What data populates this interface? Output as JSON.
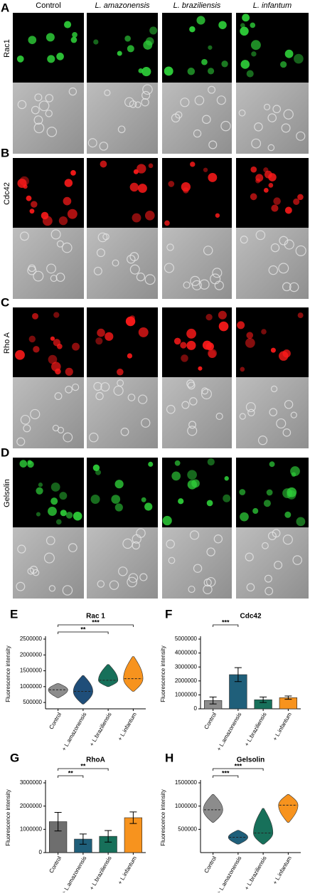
{
  "microscopy": {
    "columns": [
      "Control",
      "L. amazonensis",
      "L. braziliensis",
      "L. infantum"
    ],
    "rows": [
      {
        "panel": "A",
        "label": "Rac1",
        "color": "#2fd13a"
      },
      {
        "panel": "B",
        "label": "Cdc42",
        "color": "#ff1a1a"
      },
      {
        "panel": "C",
        "label": "Rho A",
        "color": "#ff1a1a"
      },
      {
        "panel": "D",
        "label": "Gelsolin",
        "color": "#2fd13a"
      }
    ]
  },
  "chart_data": [
    {
      "type": "violin",
      "panel": "E",
      "title": "Rac 1",
      "y_label": "Fluorescence intensity",
      "categories": [
        "Control",
        "+ L.amazonensis",
        "+ L.braziliensis",
        "+ L.infantum"
      ],
      "colors": [
        "#8c8c8c",
        "#1f4e79",
        "#17705a",
        "#f7931e"
      ],
      "medians": [
        900000,
        850000,
        1200000,
        1250000
      ],
      "mins": [
        650000,
        450000,
        1000000,
        850000
      ],
      "maxs": [
        1100000,
        1350000,
        1700000,
        1950000
      ],
      "ylim": [
        300000,
        2500000
      ],
      "yticks": [
        500000,
        1000000,
        1500000,
        2000000,
        2500000
      ],
      "annotations": [
        {
          "text": "***",
          "between": [
            "Control",
            "+ L.infantum"
          ]
        },
        {
          "text": "**",
          "between": [
            "Control",
            "+ L.braziliensis"
          ]
        }
      ]
    },
    {
      "type": "bar",
      "panel": "F",
      "title": "Cdc42",
      "y_label": "Fluorescence intensity",
      "categories": [
        "Control",
        "+ L.amazonensis",
        "+ L.braziliensis",
        "+ L.infantum"
      ],
      "colors": [
        "#8c8c8c",
        "#1f5f7a",
        "#17705a",
        "#f7931e"
      ],
      "values": [
        600000,
        2450000,
        650000,
        800000
      ],
      "errors": [
        250000,
        500000,
        200000,
        120000
      ],
      "ylim": [
        0,
        5000000
      ],
      "yticks": [
        0,
        1000000,
        2000000,
        3000000,
        4000000,
        5000000
      ],
      "annotations": [
        {
          "text": "***",
          "between": [
            "Control",
            "+ L.amazonensis"
          ]
        }
      ]
    },
    {
      "type": "bar",
      "panel": "G",
      "title": "RhoA",
      "y_label": "Fluorescence intensity",
      "categories": [
        "Control",
        "+ L.amazonensis",
        "+ L.braziliensis",
        "+ L.infantum"
      ],
      "colors": [
        "#6e6e6e",
        "#1f5f7a",
        "#17705a",
        "#f7931e"
      ],
      "values": [
        1330000,
        580000,
        700000,
        1500000
      ],
      "errors": [
        400000,
        220000,
        250000,
        250000
      ],
      "ylim": [
        0,
        3000000
      ],
      "yticks": [
        0,
        1000000,
        2000000,
        3000000
      ],
      "annotations": [
        {
          "text": "**",
          "between": [
            "Control",
            "+ L.braziliensis"
          ]
        },
        {
          "text": "**",
          "between": [
            "Control",
            "+ L.amazonensis"
          ]
        }
      ]
    },
    {
      "type": "violin",
      "panel": "H",
      "title": "Gelsolin",
      "y_label": "Fluorescence intensity",
      "categories": [
        "Control",
        "+ L.amazonensis",
        "+ L.braziliensis",
        "+ L.infantum"
      ],
      "colors": [
        "#8c8c8c",
        "#1f5f7a",
        "#17705a",
        "#f7931e"
      ],
      "medians": [
        920000,
        330000,
        420000,
        1020000
      ],
      "mins": [
        650000,
        180000,
        180000,
        650000
      ],
      "maxs": [
        1250000,
        480000,
        950000,
        1250000
      ],
      "ylim": [
        0,
        1500000
      ],
      "yticks": [
        500000,
        1000000,
        1500000
      ],
      "annotations": [
        {
          "text": "***",
          "between": [
            "Control",
            "+ L.braziliensis"
          ]
        },
        {
          "text": "***",
          "between": [
            "Control",
            "+ L.amazonensis"
          ]
        }
      ]
    }
  ]
}
